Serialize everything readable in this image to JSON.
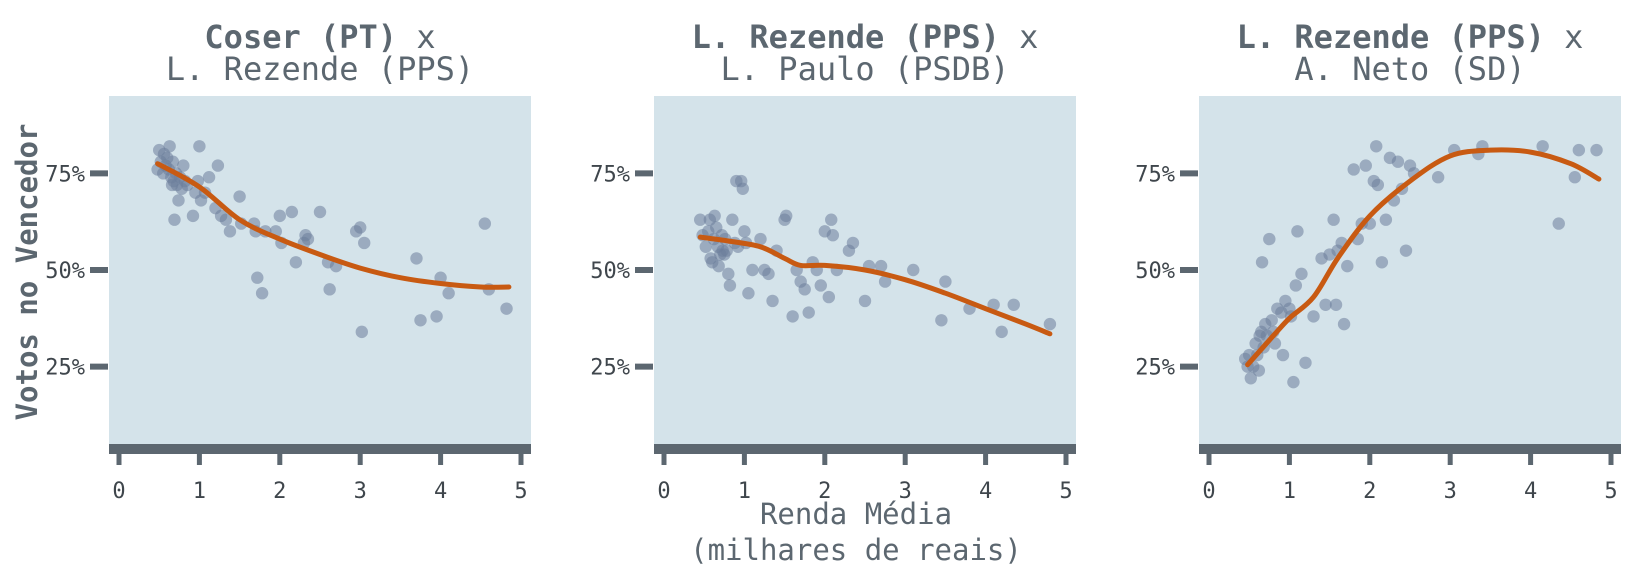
{
  "colors": {
    "panel_bg": "#d4e3ea",
    "axis": "#5c6770",
    "point": "#6b7e9a",
    "trend": "#c85a12",
    "text": "#5c6770"
  },
  "axes": {
    "ylabel": "Votos no Vencedor",
    "xlabel_line1": "Renda Média",
    "xlabel_line2": "(milhares de reais)"
  },
  "chart_data": [
    {
      "type": "scatter",
      "title_bold": "Coser (PT)",
      "title_x": "x",
      "subtitle": "L. Rezende (PPS)",
      "xlim": [
        0,
        5
      ],
      "ylim": [
        0.05,
        0.95
      ],
      "xticks": [
        "0",
        "1",
        "2",
        "3",
        "4",
        "5"
      ],
      "yticks": [
        "25%",
        "50%",
        "75%"
      ],
      "grid": false,
      "points": [
        [
          0.48,
          0.76
        ],
        [
          0.5,
          0.81
        ],
        [
          0.52,
          0.78
        ],
        [
          0.55,
          0.75
        ],
        [
          0.56,
          0.8
        ],
        [
          0.58,
          0.77
        ],
        [
          0.6,
          0.79
        ],
        [
          0.62,
          0.76
        ],
        [
          0.63,
          0.82
        ],
        [
          0.65,
          0.74
        ],
        [
          0.66,
          0.72
        ],
        [
          0.67,
          0.78
        ],
        [
          0.68,
          0.73
        ],
        [
          0.69,
          0.63
        ],
        [
          0.71,
          0.75
        ],
        [
          0.72,
          0.72
        ],
        [
          0.74,
          0.68
        ],
        [
          0.76,
          0.74
        ],
        [
          0.78,
          0.71
        ],
        [
          0.8,
          0.77
        ],
        [
          0.82,
          0.73
        ],
        [
          0.85,
          0.72
        ],
        [
          0.92,
          0.64
        ],
        [
          0.95,
          0.7
        ],
        [
          0.98,
          0.73
        ],
        [
          1.0,
          0.82
        ],
        [
          1.02,
          0.68
        ],
        [
          1.07,
          0.7
        ],
        [
          1.12,
          0.74
        ],
        [
          1.2,
          0.66
        ],
        [
          1.23,
          0.77
        ],
        [
          1.27,
          0.64
        ],
        [
          1.33,
          0.63
        ],
        [
          1.38,
          0.6
        ],
        [
          1.5,
          0.69
        ],
        [
          1.52,
          0.62
        ],
        [
          1.68,
          0.62
        ],
        [
          1.7,
          0.6
        ],
        [
          1.72,
          0.48
        ],
        [
          1.78,
          0.44
        ],
        [
          1.82,
          0.6
        ],
        [
          1.95,
          0.6
        ],
        [
          2.0,
          0.64
        ],
        [
          2.02,
          0.57
        ],
        [
          2.15,
          0.65
        ],
        [
          2.2,
          0.52
        ],
        [
          2.3,
          0.57
        ],
        [
          2.32,
          0.59
        ],
        [
          2.35,
          0.58
        ],
        [
          2.5,
          0.65
        ],
        [
          2.6,
          0.52
        ],
        [
          2.62,
          0.45
        ],
        [
          2.7,
          0.51
        ],
        [
          2.95,
          0.6
        ],
        [
          3.0,
          0.61
        ],
        [
          3.02,
          0.34
        ],
        [
          3.05,
          0.57
        ],
        [
          3.7,
          0.53
        ],
        [
          3.75,
          0.37
        ],
        [
          3.95,
          0.38
        ],
        [
          4.0,
          0.48
        ],
        [
          4.1,
          0.44
        ],
        [
          4.55,
          0.62
        ],
        [
          4.6,
          0.45
        ],
        [
          4.82,
          0.4
        ]
      ],
      "trend": [
        [
          0.48,
          0.775
        ],
        [
          1.0,
          0.715
        ],
        [
          1.5,
          0.63
        ],
        [
          2.0,
          0.58
        ],
        [
          2.5,
          0.54
        ],
        [
          3.0,
          0.505
        ],
        [
          3.5,
          0.48
        ],
        [
          4.0,
          0.465
        ],
        [
          4.5,
          0.456
        ],
        [
          4.85,
          0.456
        ]
      ]
    },
    {
      "type": "scatter",
      "title_bold": "L. Rezende (PPS)",
      "title_x": "x",
      "subtitle": "L. Paulo (PSDB)",
      "xlim": [
        0,
        5
      ],
      "ylim": [
        0.05,
        0.95
      ],
      "xticks": [
        "0",
        "1",
        "2",
        "3",
        "4",
        "5"
      ],
      "yticks": [
        "25%",
        "50%",
        "75%"
      ],
      "grid": false,
      "points": [
        [
          0.45,
          0.63
        ],
        [
          0.48,
          0.59
        ],
        [
          0.52,
          0.56
        ],
        [
          0.55,
          0.6
        ],
        [
          0.57,
          0.63
        ],
        [
          0.58,
          0.53
        ],
        [
          0.6,
          0.52
        ],
        [
          0.62,
          0.58
        ],
        [
          0.63,
          0.64
        ],
        [
          0.65,
          0.61
        ],
        [
          0.67,
          0.56
        ],
        [
          0.68,
          0.51
        ],
        [
          0.7,
          0.54
        ],
        [
          0.72,
          0.59
        ],
        [
          0.73,
          0.55
        ],
        [
          0.75,
          0.54
        ],
        [
          0.76,
          0.58
        ],
        [
          0.78,
          0.55
        ],
        [
          0.8,
          0.49
        ],
        [
          0.82,
          0.46
        ],
        [
          0.85,
          0.63
        ],
        [
          0.88,
          0.57
        ],
        [
          0.9,
          0.73
        ],
        [
          0.92,
          0.56
        ],
        [
          0.96,
          0.73
        ],
        [
          0.98,
          0.71
        ],
        [
          1.0,
          0.6
        ],
        [
          1.02,
          0.57
        ],
        [
          1.05,
          0.44
        ],
        [
          1.1,
          0.5
        ],
        [
          1.2,
          0.58
        ],
        [
          1.25,
          0.5
        ],
        [
          1.3,
          0.49
        ],
        [
          1.35,
          0.42
        ],
        [
          1.4,
          0.55
        ],
        [
          1.5,
          0.63
        ],
        [
          1.52,
          0.64
        ],
        [
          1.6,
          0.38
        ],
        [
          1.65,
          0.5
        ],
        [
          1.7,
          0.47
        ],
        [
          1.75,
          0.45
        ],
        [
          1.8,
          0.39
        ],
        [
          1.85,
          0.52
        ],
        [
          1.9,
          0.5
        ],
        [
          1.95,
          0.46
        ],
        [
          2.0,
          0.6
        ],
        [
          2.05,
          0.43
        ],
        [
          2.08,
          0.63
        ],
        [
          2.1,
          0.59
        ],
        [
          2.15,
          0.5
        ],
        [
          2.3,
          0.55
        ],
        [
          2.35,
          0.57
        ],
        [
          2.5,
          0.42
        ],
        [
          2.55,
          0.51
        ],
        [
          2.7,
          0.51
        ],
        [
          2.75,
          0.47
        ],
        [
          3.1,
          0.5
        ],
        [
          3.45,
          0.37
        ],
        [
          3.5,
          0.47
        ],
        [
          3.8,
          0.4
        ],
        [
          4.1,
          0.41
        ],
        [
          4.2,
          0.34
        ],
        [
          4.35,
          0.41
        ],
        [
          4.8,
          0.36
        ]
      ],
      "trend": [
        [
          0.45,
          0.585
        ],
        [
          0.8,
          0.575
        ],
        [
          1.2,
          0.56
        ],
        [
          1.5,
          0.53
        ],
        [
          1.7,
          0.512
        ],
        [
          2.0,
          0.512
        ],
        [
          2.5,
          0.5
        ],
        [
          3.0,
          0.475
        ],
        [
          3.5,
          0.44
        ],
        [
          4.0,
          0.4
        ],
        [
          4.5,
          0.36
        ],
        [
          4.8,
          0.335
        ]
      ]
    },
    {
      "type": "scatter",
      "title_bold": "L. Rezende (PPS)",
      "title_x": "x",
      "subtitle": "A. Neto (SD)",
      "xlim": [
        0,
        5
      ],
      "ylim": [
        0.05,
        0.95
      ],
      "xticks": [
        "0",
        "1",
        "2",
        "3",
        "4",
        "5"
      ],
      "yticks": [
        "25%",
        "50%",
        "75%"
      ],
      "grid": false,
      "points": [
        [
          0.45,
          0.27
        ],
        [
          0.48,
          0.25
        ],
        [
          0.5,
          0.28
        ],
        [
          0.52,
          0.22
        ],
        [
          0.55,
          0.25
        ],
        [
          0.58,
          0.31
        ],
        [
          0.6,
          0.28
        ],
        [
          0.62,
          0.24
        ],
        [
          0.63,
          0.33
        ],
        [
          0.65,
          0.34
        ],
        [
          0.66,
          0.52
        ],
        [
          0.68,
          0.3
        ],
        [
          0.7,
          0.36
        ],
        [
          0.72,
          0.33
        ],
        [
          0.75,
          0.58
        ],
        [
          0.78,
          0.37
        ],
        [
          0.8,
          0.34
        ],
        [
          0.82,
          0.31
        ],
        [
          0.85,
          0.4
        ],
        [
          0.9,
          0.39
        ],
        [
          0.92,
          0.28
        ],
        [
          0.95,
          0.42
        ],
        [
          1.0,
          0.4
        ],
        [
          1.02,
          0.38
        ],
        [
          1.05,
          0.21
        ],
        [
          1.08,
          0.46
        ],
        [
          1.1,
          0.6
        ],
        [
          1.15,
          0.49
        ],
        [
          1.2,
          0.26
        ],
        [
          1.3,
          0.38
        ],
        [
          1.4,
          0.53
        ],
        [
          1.45,
          0.41
        ],
        [
          1.5,
          0.54
        ],
        [
          1.55,
          0.63
        ],
        [
          1.58,
          0.41
        ],
        [
          1.6,
          0.55
        ],
        [
          1.65,
          0.57
        ],
        [
          1.68,
          0.36
        ],
        [
          1.72,
          0.51
        ],
        [
          1.8,
          0.76
        ],
        [
          1.85,
          0.58
        ],
        [
          1.9,
          0.62
        ],
        [
          1.95,
          0.77
        ],
        [
          2.0,
          0.62
        ],
        [
          2.05,
          0.73
        ],
        [
          2.08,
          0.82
        ],
        [
          2.1,
          0.72
        ],
        [
          2.15,
          0.52
        ],
        [
          2.2,
          0.63
        ],
        [
          2.25,
          0.79
        ],
        [
          2.3,
          0.68
        ],
        [
          2.35,
          0.78
        ],
        [
          2.4,
          0.71
        ],
        [
          2.45,
          0.55
        ],
        [
          2.5,
          0.77
        ],
        [
          2.55,
          0.75
        ],
        [
          2.85,
          0.74
        ],
        [
          3.05,
          0.81
        ],
        [
          3.35,
          0.8
        ],
        [
          3.4,
          0.82
        ],
        [
          4.15,
          0.82
        ],
        [
          4.35,
          0.62
        ],
        [
          4.55,
          0.74
        ],
        [
          4.6,
          0.81
        ],
        [
          4.82,
          0.81
        ]
      ],
      "trend": [
        [
          0.48,
          0.255
        ],
        [
          0.8,
          0.33
        ],
        [
          1.0,
          0.375
        ],
        [
          1.3,
          0.43
        ],
        [
          1.6,
          0.53
        ],
        [
          2.0,
          0.64
        ],
        [
          2.5,
          0.73
        ],
        [
          3.0,
          0.795
        ],
        [
          3.5,
          0.81
        ],
        [
          4.0,
          0.805
        ],
        [
          4.5,
          0.775
        ],
        [
          4.85,
          0.735
        ]
      ]
    }
  ]
}
